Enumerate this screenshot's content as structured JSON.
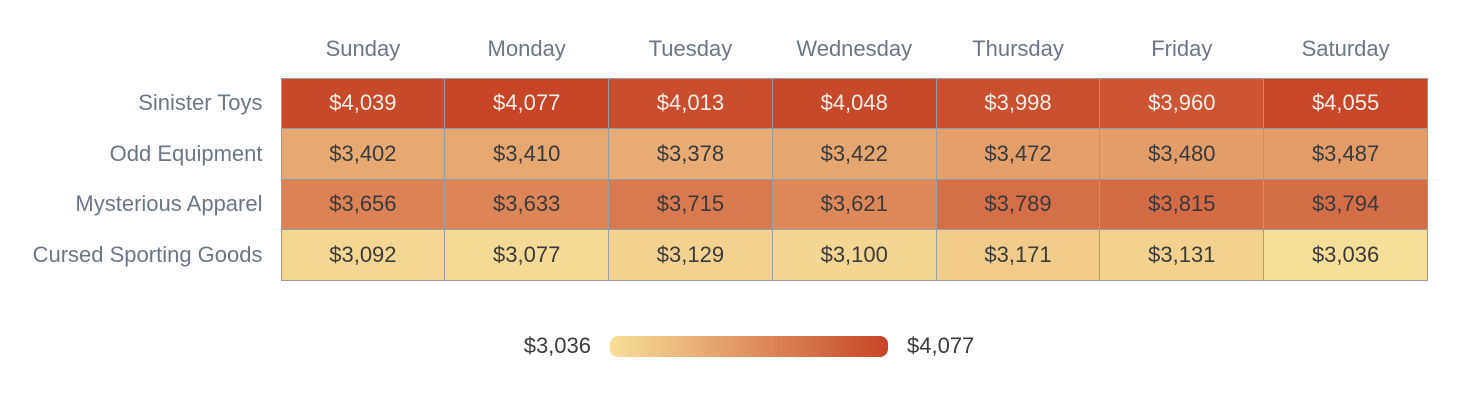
{
  "chart_data": {
    "type": "heatmap",
    "columns": [
      "Sunday",
      "Monday",
      "Tuesday",
      "Wednesday",
      "Thursday",
      "Friday",
      "Saturday"
    ],
    "rows": [
      "Sinister Toys",
      "Odd Equipment",
      "Mysterious Apparel",
      "Cursed Sporting Goods"
    ],
    "values": [
      [
        4039,
        4077,
        4013,
        4048,
        3998,
        3960,
        4055
      ],
      [
        3402,
        3410,
        3378,
        3422,
        3472,
        3480,
        3487
      ],
      [
        3656,
        3633,
        3715,
        3621,
        3789,
        3815,
        3794
      ],
      [
        3092,
        3077,
        3129,
        3100,
        3171,
        3131,
        3036
      ]
    ],
    "value_prefix": "$",
    "min_value": 3036,
    "max_value": 4077,
    "legend": {
      "min_label": "$3,036",
      "max_label": "$4,077"
    },
    "colors": {
      "scale_min": "#f8df99",
      "scale_max": "#c74427",
      "grid": "#979da5",
      "header_text": "#6b7787",
      "cell_text_dark": "#3b3b3b",
      "cell_text_light": "#f7eee8",
      "background": "#ffffff"
    },
    "light_text_threshold": 0.8
  }
}
